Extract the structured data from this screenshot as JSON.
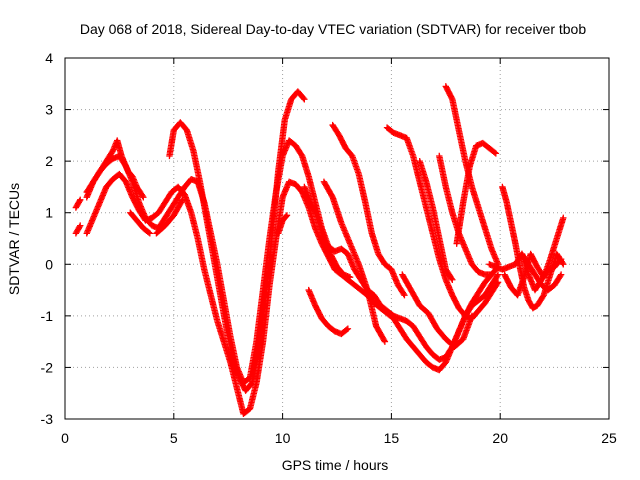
{
  "chart_data": {
    "type": "scatter",
    "title": "Day 068 of 2018, Sidereal Day-to-day VTEC variation (SDTVAR) for receiver tbob",
    "xlabel": "GPS time / hours",
    "ylabel": "SDTVAR / TECUs",
    "xlim": [
      0,
      25
    ],
    "ylim": [
      -3,
      4
    ],
    "xticks": [
      0,
      5,
      10,
      15,
      20,
      25
    ],
    "yticks": [
      -3,
      -2,
      -1,
      0,
      1,
      2,
      3,
      4
    ],
    "xtick_labels": [
      "0",
      "5",
      "10",
      "15",
      "20",
      "25"
    ],
    "ytick_labels": [
      "-3",
      "-2",
      "-1",
      "0",
      "1",
      "2",
      "3",
      "4"
    ],
    "grid": true,
    "marker": "+",
    "color": "#ff0000",
    "series": [
      {
        "x": [
          0.5,
          0.7
        ],
        "y": [
          1.1,
          1.25
        ]
      },
      {
        "x": [
          0.5,
          0.7
        ],
        "y": [
          0.6,
          0.75
        ]
      },
      {
        "x": [
          1.0,
          1.3,
          1.6,
          1.9,
          2.2,
          2.4,
          2.6,
          2.9,
          3.1,
          3.3,
          3.6
        ],
        "y": [
          1.4,
          1.6,
          1.8,
          2.0,
          2.2,
          2.4,
          2.1,
          1.8,
          1.7,
          1.5,
          1.3
        ]
      },
      {
        "x": [
          1.0,
          1.3,
          1.6,
          1.9,
          2.2,
          2.5,
          2.8,
          3.1,
          3.4,
          3.7,
          4.0,
          4.3,
          4.6,
          4.9,
          5.2,
          5.5,
          5.8,
          6.1,
          6.4,
          6.7,
          7.0,
          7.3,
          7.6,
          7.9,
          8.2,
          8.5,
          8.8,
          9.1,
          9.4,
          9.7,
          10.0,
          10.3,
          10.6,
          10.9,
          11.2,
          11.5,
          11.8,
          12.1,
          12.4,
          12.7,
          13.0,
          13.3,
          13.6,
          13.9,
          14.2,
          14.5,
          14.8,
          15.1,
          15.4,
          15.7,
          16.0,
          16.3,
          16.6,
          16.9,
          17.2,
          17.5,
          17.8,
          18.1,
          18.4,
          18.7,
          19.0,
          19.3,
          19.6,
          19.9
        ],
        "y": [
          1.3,
          1.6,
          1.8,
          1.95,
          2.05,
          2.1,
          1.9,
          1.6,
          1.2,
          0.9,
          0.75,
          0.7,
          0.9,
          1.1,
          1.3,
          1.5,
          1.65,
          1.6,
          1.2,
          0.6,
          0.0,
          -0.7,
          -1.4,
          -2.0,
          -2.3,
          -2.2,
          -1.5,
          -0.5,
          0.5,
          1.4,
          2.1,
          2.4,
          2.3,
          2.1,
          1.7,
          1.2,
          0.7,
          0.35,
          0.25,
          0.3,
          0.2,
          -0.1,
          -0.3,
          -0.5,
          -0.6,
          -0.8,
          -0.9,
          -1.0,
          -1.05,
          -1.1,
          -1.2,
          -1.4,
          -1.6,
          -1.75,
          -1.85,
          -1.8,
          -1.6,
          -1.3,
          -1.0,
          -0.8,
          -0.7,
          -0.6,
          -0.4,
          -0.2
        ]
      },
      {
        "x": [
          1.0,
          1.3,
          1.6,
          1.9,
          2.2,
          2.5,
          2.8,
          3.1,
          3.4,
          3.7,
          4.0,
          4.3,
          4.6,
          4.9,
          5.2,
          5.5,
          5.8,
          6.1,
          6.4,
          6.7,
          7.0,
          7.3,
          7.6,
          7.9,
          8.2,
          8.5,
          8.8,
          9.1,
          9.4,
          9.7,
          10.0,
          10.3,
          10.6,
          10.9,
          11.2,
          11.5,
          11.8,
          12.1,
          12.4,
          12.7,
          13.0,
          13.3,
          13.6,
          13.9,
          14.2,
          14.5,
          14.8,
          15.1,
          15.4,
          15.7,
          16.0,
          16.3,
          16.6,
          16.9,
          17.2,
          17.5,
          17.8,
          18.1,
          18.4,
          18.7,
          19.0,
          19.3,
          19.6
        ],
        "y": [
          0.6,
          0.9,
          1.2,
          1.5,
          1.65,
          1.75,
          1.6,
          1.3,
          1.05,
          0.85,
          0.9,
          1.0,
          1.2,
          1.4,
          1.5,
          1.35,
          1.0,
          0.5,
          -0.1,
          -0.6,
          -1.1,
          -1.5,
          -1.9,
          -2.4,
          -2.9,
          -2.8,
          -2.3,
          -1.5,
          -0.4,
          0.5,
          1.3,
          1.6,
          1.55,
          1.4,
          1.1,
          0.7,
          0.4,
          0.15,
          -0.1,
          -0.2,
          -0.3,
          -0.4,
          -0.5,
          -0.6,
          -0.75,
          -0.85,
          -0.95,
          -1.05,
          -1.25,
          -1.45,
          -1.6,
          -1.75,
          -1.9,
          -2.0,
          -2.05,
          -1.9,
          -1.6,
          -1.3,
          -1.0,
          -0.75,
          -0.55,
          -0.35,
          -0.2
        ]
      },
      {
        "x": [
          3.0,
          3.3,
          3.6,
          3.9
        ],
        "y": [
          1.0,
          0.85,
          0.7,
          0.6
        ]
      },
      {
        "x": [
          4.8,
          5.0,
          5.3,
          5.6,
          5.9,
          6.2,
          6.5,
          6.8,
          7.1,
          7.4,
          7.7,
          8.0,
          8.3,
          8.6,
          8.9,
          9.2,
          9.5,
          9.8,
          10.1,
          10.4,
          10.7,
          11.0
        ],
        "y": [
          2.1,
          2.6,
          2.75,
          2.6,
          2.2,
          1.6,
          0.9,
          0.2,
          -0.5,
          -1.2,
          -1.8,
          -2.2,
          -2.45,
          -2.3,
          -1.7,
          -0.7,
          0.5,
          1.8,
          2.8,
          3.2,
          3.35,
          3.2
        ]
      },
      {
        "x": [
          4.2,
          4.6,
          5.0,
          5.4
        ],
        "y": [
          0.6,
          0.75,
          0.95,
          1.25
        ]
      },
      {
        "x": [
          9.8,
          10.0,
          10.2
        ],
        "y": [
          0.6,
          0.85,
          0.95
        ]
      },
      {
        "x": [
          11.0,
          11.3,
          11.6,
          11.9,
          12.2,
          12.5,
          12.8,
          13.1
        ],
        "y": [
          1.5,
          1.2,
          0.9,
          0.5,
          0.2,
          -0.05,
          -0.2,
          -0.25
        ]
      },
      {
        "x": [
          11.2,
          11.5,
          11.8,
          12.1,
          12.4,
          12.7,
          13.0
        ],
        "y": [
          -0.5,
          -0.8,
          -1.05,
          -1.2,
          -1.3,
          -1.35,
          -1.25
        ]
      },
      {
        "x": [
          12.3,
          12.6,
          12.9,
          13.2,
          13.5,
          13.8,
          14.1,
          14.4,
          14.7,
          15.0,
          15.3,
          15.6
        ],
        "y": [
          2.7,
          2.5,
          2.25,
          2.1,
          1.75,
          1.2,
          0.6,
          0.2,
          0.0,
          -0.1,
          -0.4,
          -0.6
        ]
      },
      {
        "x": [
          11.9,
          12.3,
          12.7,
          13.1,
          13.5,
          13.9,
          14.3,
          14.7
        ],
        "y": [
          1.6,
          1.3,
          0.8,
          0.4,
          0.0,
          -0.5,
          -1.2,
          -1.5
        ]
      },
      {
        "x": [
          14.8,
          15.1,
          15.4,
          15.7,
          16.0,
          16.3,
          16.6,
          16.9,
          17.2,
          17.5,
          17.8,
          18.1,
          18.4,
          18.7,
          19.0,
          19.3,
          19.6,
          19.9
        ],
        "y": [
          2.65,
          2.55,
          2.5,
          2.45,
          2.1,
          1.6,
          1.1,
          0.6,
          0.1,
          -0.3,
          -0.6,
          -0.85,
          -1.0,
          -1.05,
          -0.9,
          -0.75,
          -0.55,
          -0.35
        ]
      },
      {
        "x": [
          15.5,
          15.9,
          16.3,
          16.7,
          17.1,
          17.5,
          17.9,
          18.3,
          18.7
        ],
        "y": [
          -0.2,
          -0.5,
          -0.8,
          -0.95,
          -1.25,
          -1.45,
          -1.6,
          -1.45,
          -1.0
        ]
      },
      {
        "x": [
          17.2,
          17.5,
          17.8,
          18.1,
          18.4,
          18.7,
          19.0,
          19.3,
          19.6,
          19.9
        ],
        "y": [
          2.1,
          1.5,
          1.0,
          0.6,
          0.3,
          0.0,
          -0.15,
          -0.2,
          -0.2,
          -0.05
        ]
      },
      {
        "x": [
          16.3,
          16.6,
          16.9,
          17.2,
          17.5,
          17.8
        ],
        "y": [
          2.0,
          1.6,
          1.1,
          0.5,
          -0.1,
          -0.3
        ]
      },
      {
        "x": [
          17.5,
          17.8,
          18.1,
          18.4,
          18.7,
          19.0,
          19.3,
          19.6,
          19.9
        ],
        "y": [
          3.45,
          3.2,
          2.6,
          2.0,
          1.5,
          1.1,
          0.7,
          0.3,
          0.0
        ]
      },
      {
        "x": [
          18.0,
          18.3,
          18.6,
          18.9,
          19.2,
          19.5,
          19.8
        ],
        "y": [
          0.4,
          1.2,
          1.9,
          2.3,
          2.35,
          2.25,
          2.15
        ]
      },
      {
        "x": [
          19.5,
          19.8,
          20.1,
          20.4,
          20.7,
          21.0,
          21.3,
          21.6,
          21.9,
          22.2,
          22.5,
          22.8
        ],
        "y": [
          0.0,
          -0.05,
          -0.1,
          -0.05,
          0.0,
          0.2,
          0.0,
          -0.2,
          -0.4,
          -0.5,
          -0.4,
          -0.2
        ]
      },
      {
        "x": [
          20.1,
          20.3,
          20.5,
          20.7,
          20.9,
          21.1,
          21.3,
          21.5,
          21.7,
          22.0,
          22.3,
          22.6,
          22.9
        ],
        "y": [
          1.5,
          1.2,
          0.8,
          0.4,
          -0.05,
          -0.45,
          -0.7,
          -0.85,
          -0.8,
          -0.6,
          -0.2,
          0.2,
          0.0
        ]
      },
      {
        "x": [
          20.2,
          20.5,
          20.8,
          21.1,
          21.4,
          21.7,
          22.0,
          22.3,
          22.6,
          22.9
        ],
        "y": [
          -0.2,
          -0.45,
          -0.6,
          -0.25,
          0.2,
          -0.05,
          -0.25,
          0.1,
          0.5,
          0.9
        ]
      },
      {
        "x": [
          21.0,
          21.3,
          21.6,
          21.9,
          22.2,
          22.5,
          22.8
        ],
        "y": [
          0.2,
          -0.2,
          -0.5,
          -0.3,
          -0.1,
          -0.05,
          0.1
        ]
      }
    ]
  }
}
